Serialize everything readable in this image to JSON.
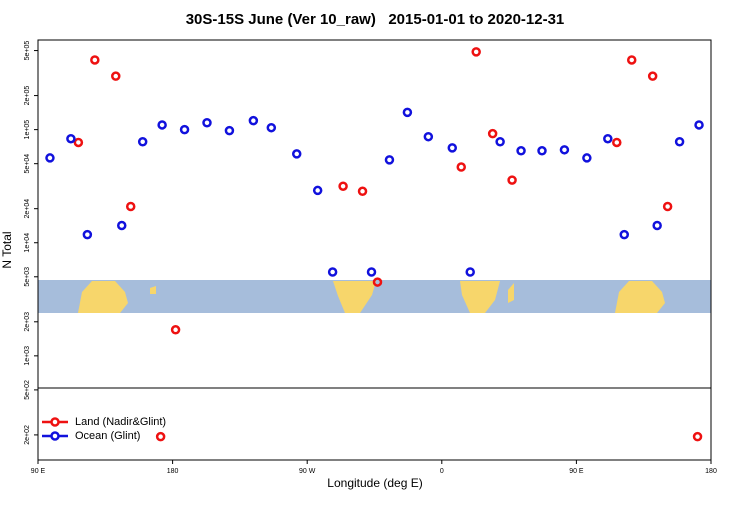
{
  "chart_data": {
    "type": "scatter",
    "title": "30S-15S June (Ver 10_raw)   2015-01-01 to 2020-12-31",
    "x_label": "Longitude (deg E)",
    "y_label": "N Total",
    "log_y": true,
    "legend": "bottom-left",
    "xlim": [
      90,
      540
    ],
    "xticks": [
      {
        "value": 90,
        "label": "90 E"
      },
      {
        "value": 180,
        "label": "180"
      },
      {
        "value": 270,
        "label": "90 W"
      },
      {
        "value": 360,
        "label": "0"
      },
      {
        "value": 450,
        "label": "90 E"
      },
      {
        "value": 540,
        "label": "180"
      }
    ],
    "ylim": [
      120,
      620000
    ],
    "yticks": [
      {
        "value": 200,
        "label": "2e+02"
      },
      {
        "value": 500,
        "label": "5e+02"
      },
      {
        "value": 1000,
        "label": "1e+03"
      },
      {
        "value": 2000,
        "label": "2e+03"
      },
      {
        "value": 5000,
        "label": "5e+03"
      },
      {
        "value": 10000,
        "label": "1e+04"
      },
      {
        "value": 20000,
        "label": "2e+04"
      },
      {
        "value": 50000,
        "label": "5e+04"
      },
      {
        "value": 100000,
        "label": "1e+05"
      },
      {
        "value": 200000,
        "label": "2e+05"
      },
      {
        "value": 500000,
        "label": "5e+05"
      }
    ],
    "series": [
      {
        "name": "Land (Nadir&Glint)",
        "color": "#ee1111",
        "x": [
          117,
          128,
          142,
          152,
          182,
          172,
          294,
          307,
          317,
          373,
          383,
          394,
          407,
          477,
          487,
          501,
          511,
          531
        ],
        "y": [
          77000,
          413000,
          297000,
          20900,
          1700,
          193,
          31600,
          28500,
          4490,
          46700,
          487000,
          92100,
          35800,
          77000,
          413000,
          297000,
          20900,
          193
        ]
      },
      {
        "name": "Ocean (Glint)",
        "color": "#1111dd",
        "x": [
          98,
          112,
          123,
          146,
          160,
          173,
          188,
          203,
          218,
          234,
          246,
          263,
          277,
          287,
          313,
          325,
          337,
          351,
          367,
          379,
          399,
          413,
          427,
          442,
          457,
          471,
          482,
          504,
          519,
          532
        ],
        "y": [
          56200,
          83100,
          11800,
          14200,
          78100,
          110000,
          100000,
          115000,
          98000,
          120000,
          104000,
          61000,
          29000,
          5510,
          5510,
          54000,
          142000,
          86600,
          69000,
          5510,
          78100,
          65000,
          65000,
          66300,
          56200,
          83100,
          11800,
          14200,
          78100,
          110000
        ]
      }
    ]
  }
}
